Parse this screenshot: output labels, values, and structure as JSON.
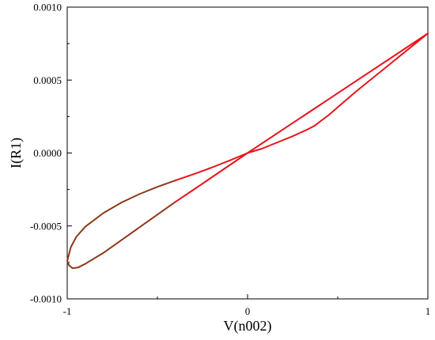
{
  "chart_data": {
    "type": "line",
    "title": "",
    "xlabel": "V(n002)",
    "ylabel": "I(R1)",
    "xlim": [
      -1,
      1
    ],
    "ylim": [
      -0.001,
      0.001
    ],
    "x_ticks": [
      {
        "value": -1,
        "label": "-1"
      },
      {
        "value": 0,
        "label": "0"
      },
      {
        "value": 1,
        "label": "1"
      }
    ],
    "y_ticks": [
      {
        "value": -0.001,
        "label": "-0.0010"
      },
      {
        "value": -0.0005,
        "label": "-0.0005"
      },
      {
        "value": 0,
        "label": "0.0000"
      },
      {
        "value": 0.0005,
        "label": "0.0005"
      },
      {
        "value": 0.001,
        "label": "0.0010"
      }
    ],
    "grid": false,
    "series": [
      {
        "color": "#e8141b",
        "x": [
          0.0,
          0.2,
          0.4,
          0.6,
          0.8,
          1.0
        ],
        "y": [
          0.0,
          0.000164,
          0.000328,
          0.000492,
          0.000656,
          0.00082
        ]
      },
      {
        "color": "#e8141b",
        "x": [
          1.0,
          0.8,
          0.6,
          0.45,
          0.37,
          0.33,
          0.25,
          0.15,
          0.08,
          0.0
        ],
        "y": [
          0.00082,
          0.00062,
          0.00042,
          0.00026,
          0.000186,
          0.00016,
          0.000115,
          6.5e-05,
          3e-05,
          0.0
        ]
      },
      {
        "color": "#e8141b",
        "x": [
          0.0,
          -0.1,
          -0.2,
          -0.3,
          -0.4
        ],
        "y": [
          0.0,
          -5.2e-05,
          -0.0001,
          -0.000145,
          -0.000188
        ]
      },
      {
        "color": "#8b3a1a",
        "x": [
          -0.4,
          -0.5,
          -0.6,
          -0.7,
          -0.8,
          -0.9,
          -0.95,
          -0.98,
          -1.0
        ],
        "y": [
          -0.000188,
          -0.000232,
          -0.000282,
          -0.00034,
          -0.000412,
          -0.000505,
          -0.000575,
          -0.000645,
          -0.00074
        ]
      },
      {
        "color": "#8b3a1a",
        "x": [
          -1.0,
          -0.99,
          -0.97,
          -0.94,
          -0.9,
          -0.8,
          -0.6,
          -0.4
        ],
        "y": [
          -0.00074,
          -0.00077,
          -0.00079,
          -0.000785,
          -0.00076,
          -0.000685,
          -0.00051,
          -0.000335
        ]
      },
      {
        "color": "#e8141b",
        "x": [
          -0.4,
          -0.3,
          -0.2,
          -0.1,
          0.0
        ],
        "y": [
          -0.000335,
          -0.000252,
          -0.000168,
          -8.4e-05,
          0.0
        ]
      }
    ]
  }
}
